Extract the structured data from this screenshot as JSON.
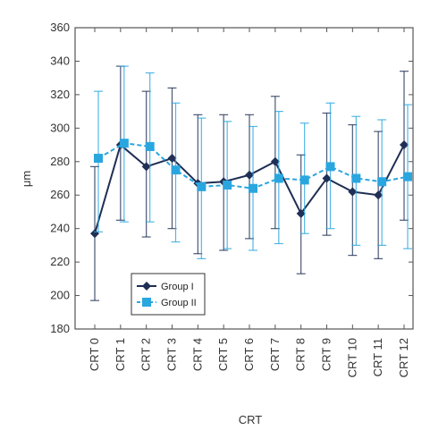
{
  "chart_data": {
    "type": "line",
    "title": "",
    "xlabel": "CRT",
    "ylabel": "μm",
    "ylim": [
      180,
      360
    ],
    "yticks": [
      180,
      200,
      220,
      240,
      260,
      280,
      300,
      320,
      340,
      360
    ],
    "categories": [
      "CRT 0",
      "CRT 1",
      "CRT 2",
      "CRT 3",
      "CRT 4",
      "CRT 5",
      "CRT 6",
      "CRT 7",
      "CRT 8",
      "CRT 9",
      "CRT 10",
      "CRT 11",
      "CRT 12"
    ],
    "grid": false,
    "legend_position": "bottom-left",
    "series": [
      {
        "name": "Group I",
        "color": "#1f2f55",
        "marker": "diamond",
        "line_style": "solid",
        "values": [
          237,
          290,
          277,
          282,
          267,
          268,
          272,
          280,
          249,
          270,
          262,
          260,
          290
        ],
        "error_low": [
          197,
          245,
          235,
          240,
          225,
          227,
          234,
          240,
          213,
          236,
          224,
          222,
          245
        ],
        "error_high": [
          277,
          337,
          322,
          324,
          308,
          308,
          308,
          319,
          284,
          309,
          302,
          298,
          334
        ]
      },
      {
        "name": "Group II",
        "color": "#2aa6df",
        "marker": "square",
        "line_style": "dashed",
        "values": [
          282,
          291,
          289,
          275,
          265,
          266,
          264,
          270,
          269,
          277,
          270,
          268,
          271
        ],
        "error_low": [
          238,
          244,
          244,
          232,
          222,
          228,
          227,
          231,
          237,
          240,
          230,
          230,
          228
        ],
        "error_high": [
          322,
          337,
          333,
          315,
          306,
          304,
          301,
          310,
          303,
          315,
          307,
          305,
          314
        ]
      }
    ]
  }
}
